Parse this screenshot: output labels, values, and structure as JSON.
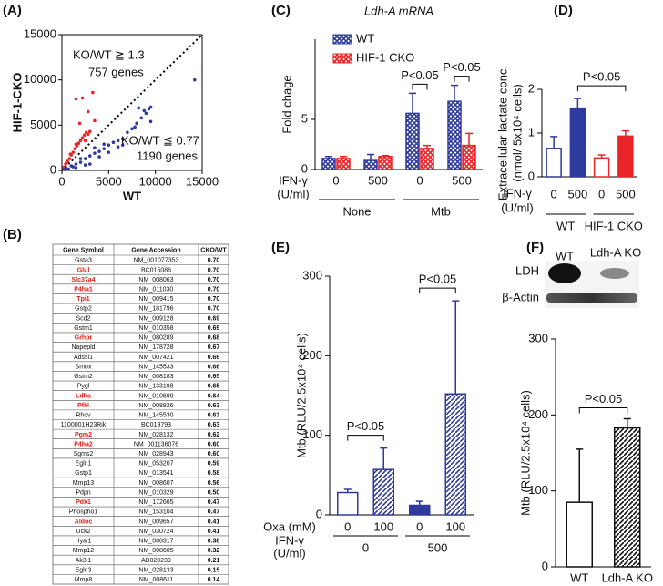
{
  "chart_data": [
    {
      "type": "scatter",
      "panel": "(A)",
      "xlabel": "WT",
      "ylabel": "HIF-1-CKO",
      "xlim": [
        0,
        15000
      ],
      "ylim": [
        0,
        15000
      ],
      "xticks": [
        0,
        5000,
        10000,
        15000
      ],
      "yticks": [
        0,
        5000,
        10000,
        15000
      ],
      "diagonal": true,
      "annotations": [
        "KO/WT ≧ 1.3",
        "757 genes",
        "KO/WT ≦ 0.77",
        "1190 genes"
      ],
      "series": [
        {
          "color": "#e8262a",
          "x": [
            200,
            400,
            600,
            800,
            1000,
            1200,
            1400,
            1600,
            1800,
            2000,
            2200,
            2400,
            2600,
            2800,
            900,
            500,
            2500,
            3000,
            1500,
            1500,
            2200,
            3300,
            2800,
            3500,
            1900
          ],
          "values": [
            350,
            700,
            1000,
            1300,
            1700,
            2000,
            2400,
            2700,
            3000,
            3300,
            3600,
            3900,
            4200,
            4000,
            1800,
            900,
            3300,
            4300,
            2900,
            7900,
            8000,
            8600,
            6500,
            5500,
            5200
          ]
        },
        {
          "color": "#2e3a9e",
          "x": [
            500,
            1000,
            1500,
            2000,
            2500,
            3000,
            3500,
            4000,
            4500,
            5000,
            5500,
            6000,
            6500,
            7000,
            7500,
            8000,
            8500,
            9000,
            9300,
            9500,
            8800,
            7800,
            2000,
            3000,
            4000,
            5000,
            6000,
            3500,
            2500,
            1500,
            14200,
            9500,
            8200,
            6500,
            4500,
            300,
            700,
            1200
          ],
          "values": [
            200,
            500,
            700,
            900,
            1300,
            1600,
            1900,
            2100,
            2400,
            2800,
            3100,
            3300,
            3500,
            4200,
            4600,
            5200,
            5800,
            6300,
            6800,
            7000,
            6600,
            4800,
            1300,
            700,
            1500,
            2000,
            2600,
            2500,
            600,
            300,
            10000,
            5400,
            6900,
            2800,
            2900,
            100,
            150,
            400
          ]
        }
      ]
    },
    {
      "type": "bar",
      "panel": "(C)",
      "title": "Ldh-A mRNA",
      "ylabel": "Fold chage",
      "ylim": [
        0,
        13
      ],
      "yticks": [
        0,
        5
      ],
      "categories": [
        "0",
        "500",
        "0",
        "500"
      ],
      "xlabel_lines": [
        "IFN-γ",
        "(U/ml)"
      ],
      "groups": [
        "None",
        "Mtb"
      ],
      "legend": "upper left",
      "series": [
        {
          "name": "WT",
          "color": "#2e3a9e",
          "fill": "crosshatch",
          "values": [
            1.1,
            0.9,
            5.6,
            6.8
          ],
          "errors": [
            0.2,
            0.6,
            2.0,
            1.6
          ]
        },
        {
          "name": "HIF-1 CKO",
          "color": "#e8262a",
          "fill": "crosshatch",
          "values": [
            1.1,
            1.3,
            2.1,
            2.4
          ],
          "errors": [
            0.2,
            0.1,
            0.3,
            1.2
          ]
        }
      ],
      "annotations": [
        {
          "text": "P<0.05",
          "bars": [
            4,
            5
          ]
        },
        {
          "text": "P<0.05",
          "bars": [
            6,
            7
          ]
        }
      ]
    },
    {
      "type": "bar",
      "panel": "(D)",
      "ylabel": [
        "Extracellular  lactate conc.",
        "(nmol/ 5x10⁴ cells)"
      ],
      "ylim": [
        0,
        2
      ],
      "yticks": [
        0,
        1,
        2
      ],
      "categories": [
        "0",
        "500",
        "0",
        "500"
      ],
      "xlabel_lines": [
        "IFN-γ",
        "(U/ml)"
      ],
      "groups": [
        "WT",
        "HIF-1 CKO"
      ],
      "values": [
        0.65,
        1.57,
        0.43,
        0.93
      ],
      "errors": [
        0.27,
        0.22,
        0.07,
        0.12
      ],
      "colors": [
        "#2e3a9e",
        "#2e3a9e",
        "#e8262a",
        "#e8262a"
      ],
      "fills": [
        "none",
        "solid",
        "none",
        "solid"
      ],
      "annotations": [
        {
          "text": "P<0.05",
          "bars": [
            1,
            3
          ]
        }
      ]
    },
    {
      "type": "bar",
      "panel": "(E)",
      "ylabel": "Mtb (RLU/2.5x10⁴ cells)",
      "ylim": [
        0,
        300
      ],
      "yticks": [
        0,
        100,
        200,
        300
      ],
      "categories": [
        "0",
        "100",
        "0",
        "100"
      ],
      "xlabel_lines": [
        "Oxa (mM)",
        "IFN-γ",
        "(U/ml)"
      ],
      "groups": [
        "0",
        "500"
      ],
      "values": [
        28,
        57,
        12,
        152
      ],
      "errors": [
        4,
        27,
        5,
        117
      ],
      "color": "#2e3a9e",
      "fills": [
        "none",
        "hatch",
        "solid",
        "hatch"
      ],
      "annotations": [
        {
          "text": "P<0.05",
          "bars": [
            0,
            1
          ]
        },
        {
          "text": "P<0.05",
          "bars": [
            2,
            3
          ]
        }
      ]
    },
    {
      "type": "bar",
      "panel": "(F)",
      "ylabel": "Mtb (RLU/2.5x10⁴ cells)",
      "ylim": [
        0,
        300
      ],
      "yticks": [
        0,
        100,
        200,
        300
      ],
      "categories": [
        "WT",
        "Ldh-A KO"
      ],
      "values": [
        85,
        183
      ],
      "errors": [
        70,
        12
      ],
      "color": "#111111",
      "fills": [
        "none",
        "hatch"
      ],
      "blot": [
        "LDH",
        "β-Actin"
      ],
      "annotations": [
        {
          "text": "P<0.05",
          "bars": [
            0,
            1
          ]
        }
      ]
    }
  ],
  "table": {
    "panel": "(B)",
    "columns": [
      "Gene Symbol",
      "Gene Accession",
      "CKO/WT"
    ],
    "highlight_color": "#e0201b",
    "highlight_rows": [
      1,
      2,
      3,
      4,
      8,
      14,
      15,
      18,
      19,
      25,
      27
    ],
    "rows": [
      [
        "Gsta3",
        "NM_001077353",
        "0.70"
      ],
      [
        "Glul",
        "BC015086",
        "0.70"
      ],
      [
        "Slc37a4",
        "NM_008063",
        "0.70"
      ],
      [
        "P4ha1",
        "NM_011030",
        "0.70"
      ],
      [
        "Tpi1",
        "NM_009415",
        "0.70"
      ],
      [
        "Gstp2",
        "NM_181796",
        "0.70"
      ],
      [
        "Scd2",
        "NM_009128",
        "0.69"
      ],
      [
        "Gstm1",
        "NM_010358",
        "0.69"
      ],
      [
        "Grhpr",
        "NM_080289",
        "0.68"
      ],
      [
        "Napepld",
        "NM_178728",
        "0.67"
      ],
      [
        "Adssl1",
        "NM_007421",
        "0.66"
      ],
      [
        "Smox",
        "NM_145533",
        "0.66"
      ],
      [
        "Gstm2",
        "NM_008183",
        "0.65"
      ],
      [
        "Pygl",
        "NM_133198",
        "0.65"
      ],
      [
        "Ldha",
        "NM_010699",
        "0.64"
      ],
      [
        "Pfkl",
        "NM_008826",
        "0.63"
      ],
      [
        "Rhov",
        "NM_145530",
        "0.63"
      ],
      [
        "1100001H23Rik",
        "BC019793",
        "0.63"
      ],
      [
        "Pgm2",
        "NM_028132",
        "0.62"
      ],
      [
        "P4ha2",
        "NM_001136076",
        "0.60"
      ],
      [
        "Sgms2",
        "NM_028943",
        "0.60"
      ],
      [
        "Egln1",
        "NM_053207",
        "0.59"
      ],
      [
        "Gstp1",
        "NM_013541",
        "0.58"
      ],
      [
        "Mmp13",
        "NM_008607",
        "0.56"
      ],
      [
        "Pdpn",
        "NM_010329",
        "0.50"
      ],
      [
        "Pdk1",
        "NM_172665",
        "0.47"
      ],
      [
        "Phospho1",
        "NM_153104",
        "0.47"
      ],
      [
        "Aldoc",
        "NM_009657",
        "0.41"
      ],
      [
        "Uck2",
        "NM_030724",
        "0.41"
      ],
      [
        "Hyal1",
        "NM_008317",
        "0.38"
      ],
      [
        "Mmp12",
        "NM_008605",
        "0.32"
      ],
      [
        "Ak3l1",
        "AB020239",
        "0.21"
      ],
      [
        "Egln3",
        "NM_028133",
        "0.15"
      ],
      [
        "Mmp8",
        "NM_008611",
        "0.14"
      ]
    ]
  }
}
